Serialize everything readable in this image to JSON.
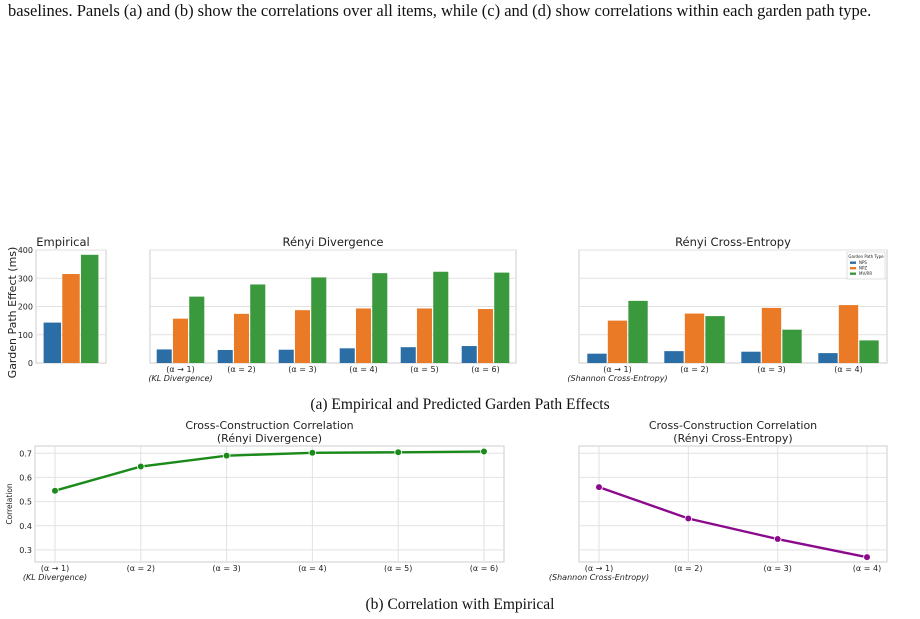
{
  "intro_text": "baselines. Panels (a) and (b) show the correlations over all items, while (c) and (d) show correlations within each garden path type.",
  "caption_a": "(a) Empirical and Predicted Garden Path Effects",
  "caption_b": "(b) Correlation with Empirical",
  "colors": {
    "NPS": "#2b6ea6",
    "NPZ": "#ea7a26",
    "MVRR": "#3a983d",
    "renyi_line": "#1a8a1a",
    "xent_line": "#8b0a8b"
  },
  "chart_data": [
    {
      "id": "empirical",
      "type": "bar",
      "title": "Empirical",
      "ylabel": "Garden Path Effect (ms)",
      "ylim": [
        0,
        400
      ],
      "yticks": [
        0,
        100,
        200,
        300,
        400
      ],
      "grid": true,
      "categories": [
        ""
      ],
      "series": [
        {
          "name": "NPS",
          "values": [
            143
          ]
        },
        {
          "name": "NPZ",
          "values": [
            315
          ]
        },
        {
          "name": "MV/RR",
          "values": [
            383
          ]
        }
      ]
    },
    {
      "id": "renyi_div",
      "type": "bar",
      "title": "Rényi Divergence",
      "ylim": [
        0,
        400
      ],
      "grid": true,
      "categories": [
        "(α → 1)",
        "(α = 2)",
        "(α = 3)",
        "(α = 4)",
        "(α = 5)",
        "(α = 6)"
      ],
      "category_sublabels": [
        "(KL Divergence)",
        "",
        "",
        "",
        "",
        ""
      ],
      "series": [
        {
          "name": "NPS",
          "values": [
            48,
            46,
            47,
            52,
            56,
            60
          ]
        },
        {
          "name": "NPZ",
          "values": [
            157,
            174,
            187,
            193,
            193,
            191
          ]
        },
        {
          "name": "MV/RR",
          "values": [
            235,
            278,
            303,
            318,
            323,
            320
          ]
        }
      ]
    },
    {
      "id": "renyi_xent",
      "type": "bar",
      "title": "Rényi Cross-Entropy",
      "ylim": [
        0,
        400
      ],
      "grid": true,
      "legend": {
        "title": "Garden Path Type",
        "placement": "top-right",
        "entries": [
          "NPS",
          "NPZ",
          "MV/RR"
        ]
      },
      "categories": [
        "(α → 1)",
        "(α = 2)",
        "(α = 3)",
        "(α = 4)"
      ],
      "category_sublabels": [
        "(Shannon Cross-Entropy)",
        "",
        "",
        ""
      ],
      "series": [
        {
          "name": "NPS",
          "values": [
            33,
            42,
            40,
            35
          ]
        },
        {
          "name": "NPZ",
          "values": [
            150,
            175,
            195,
            205
          ]
        },
        {
          "name": "MV/RR",
          "values": [
            220,
            166,
            118,
            80
          ]
        }
      ]
    },
    {
      "id": "corr_div",
      "type": "line",
      "title": "Cross-Construction Correlation",
      "subtitle": "(Rényi Divergence)",
      "ylabel": "Correlation",
      "ylim": [
        0.25,
        0.73
      ],
      "yticks": [
        0.3,
        0.4,
        0.5,
        0.6,
        0.7
      ],
      "grid": true,
      "categories": [
        "(α → 1)",
        "(α = 2)",
        "(α = 3)",
        "(α = 4)",
        "(α = 5)",
        "(α = 6)"
      ],
      "category_sublabels": [
        "(KL Divergence)",
        "",
        "",
        "",
        "",
        ""
      ],
      "values": [
        0.545,
        0.645,
        0.69,
        0.702,
        0.704,
        0.707
      ]
    },
    {
      "id": "corr_xent",
      "type": "line",
      "title": "Cross-Construction Correlation",
      "subtitle": "(Rényi Cross-Entropy)",
      "ylim": [
        0.25,
        0.73
      ],
      "grid": true,
      "categories": [
        "(α → 1)",
        "(α = 2)",
        "(α = 3)",
        "(α = 4)"
      ],
      "category_sublabels": [
        "(Shannon Cross-Entropy)",
        "",
        "",
        ""
      ],
      "values": [
        0.56,
        0.43,
        0.345,
        0.27
      ]
    }
  ]
}
